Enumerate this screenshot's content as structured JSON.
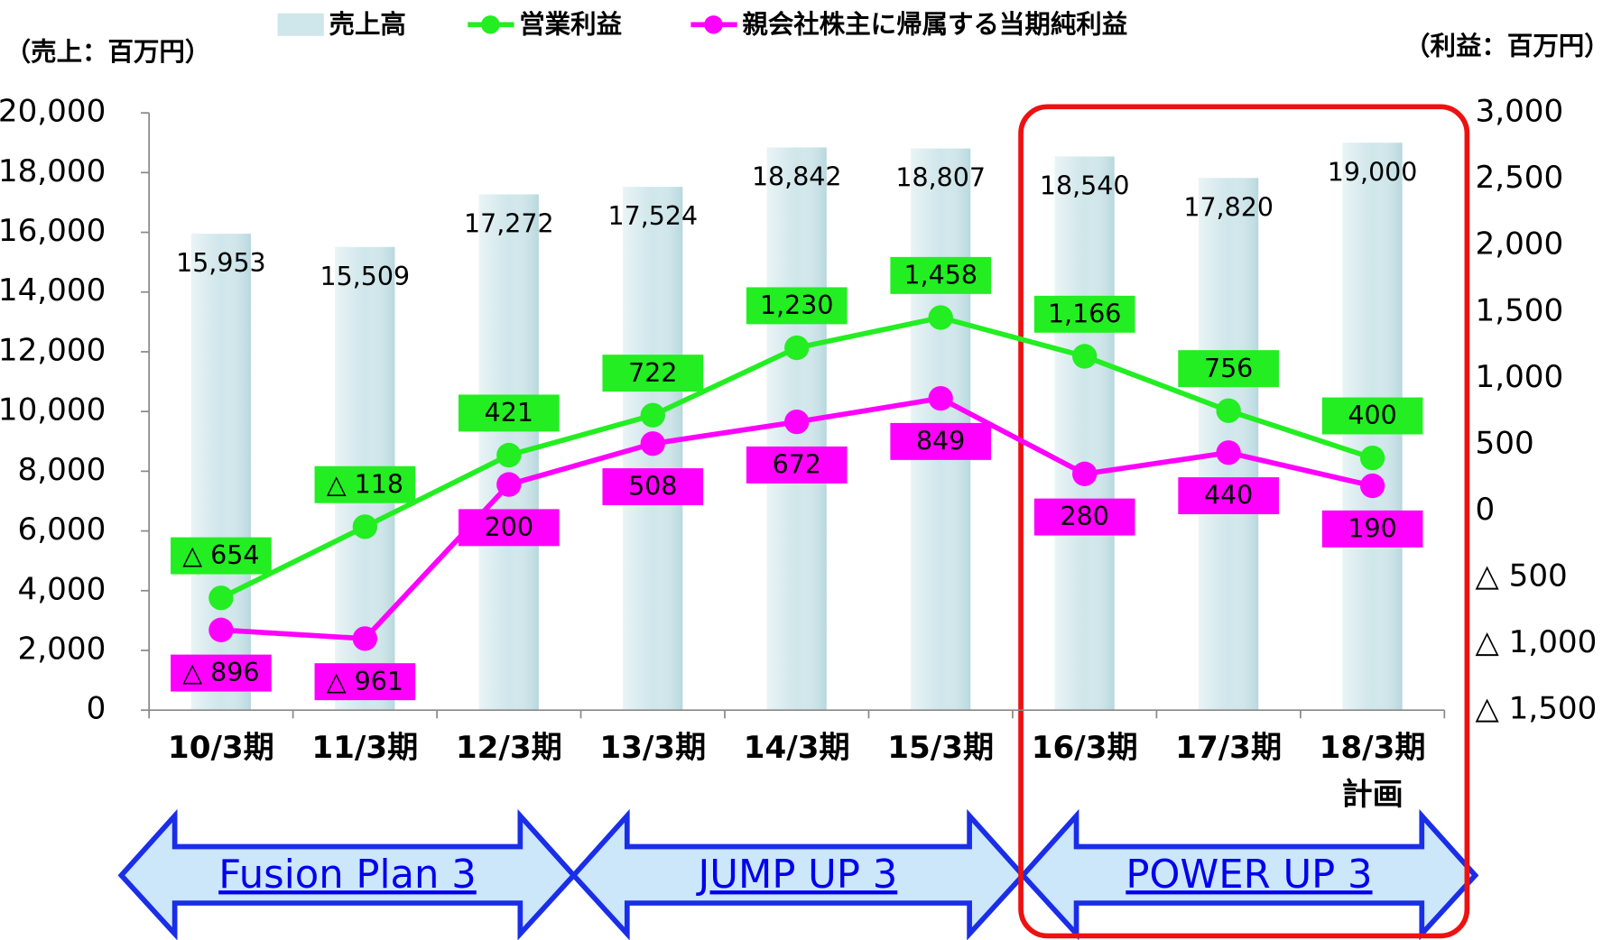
{
  "chart_data": {
    "type": "bar-line",
    "y_label": "（売上：百万円）",
    "y2_label": "（利益：百万円）",
    "categories": [
      "10/3期",
      "11/3期",
      "12/3期",
      "13/3期",
      "14/3期",
      "15/3期",
      "16/3期",
      "17/3期",
      "18/3期"
    ],
    "plan_label": "計画",
    "ylim": [
      0,
      20000
    ],
    "yticks": [
      0,
      {
        "value": 2000,
        "label": "2,000"
      },
      {
        "value": 4000,
        "label": "4,000"
      },
      {
        "value": 6000,
        "label": "6,000"
      },
      {
        "value": 8000,
        "label": "8,000"
      },
      {
        "value": 10000,
        "label": "10,000"
      },
      {
        "value": 12000,
        "label": "12,000"
      },
      {
        "value": 14000,
        "label": "14,000"
      },
      {
        "value": 16000,
        "label": "16,000"
      },
      {
        "value": 18000,
        "label": "18,000"
      },
      {
        "value": 20000,
        "label": "20,000"
      }
    ],
    "y2lim": [
      -1500,
      3000
    ],
    "y2ticks": [
      {
        "value": -1500,
        "label": "△ 1,500"
      },
      {
        "value": -1000,
        "label": "△ 1,000"
      },
      {
        "value": -500,
        "label": "△ 500"
      },
      0,
      500,
      {
        "value": 1000,
        "label": "1,000"
      },
      {
        "value": 1500,
        "label": "1,500"
      },
      {
        "value": 2000,
        "label": "2,000"
      },
      {
        "value": 2500,
        "label": "2,500"
      },
      {
        "value": 3000,
        "label": "3,000"
      }
    ],
    "series": [
      {
        "name": "売上高",
        "type": "bar",
        "color": "#cfe6ea",
        "values": [
          15953,
          15509,
          17272,
          17524,
          18842,
          18807,
          18540,
          17820,
          19000
        ],
        "value_labels": [
          "15,953",
          "15,509",
          "17,272",
          "17,524",
          "18,842",
          "18,807",
          "18,540",
          "17,820",
          "19,000"
        ]
      },
      {
        "name": "営業利益",
        "type": "line",
        "axis": "y2",
        "color": "#22ee22",
        "values": [
          -654,
          -118,
          421,
          722,
          1230,
          1458,
          1166,
          756,
          400
        ],
        "value_labels": [
          "△ 654",
          "△ 118",
          "421",
          "722",
          "1,230",
          "1,458",
          "1,166",
          "756",
          "400"
        ]
      },
      {
        "name": "親会社株主に帰属する当期純利益",
        "type": "line",
        "axis": "y2",
        "color": "#ff00ff",
        "values": [
          -896,
          -961,
          200,
          508,
          672,
          849,
          280,
          440,
          190
        ],
        "value_labels": [
          "△ 896",
          "△ 961",
          "200",
          "508",
          "672",
          "849",
          "280",
          "440",
          "190"
        ]
      }
    ],
    "phases": [
      "Fusion Plan 3",
      "JUMP UP 3",
      "POWER UP 3"
    ]
  }
}
